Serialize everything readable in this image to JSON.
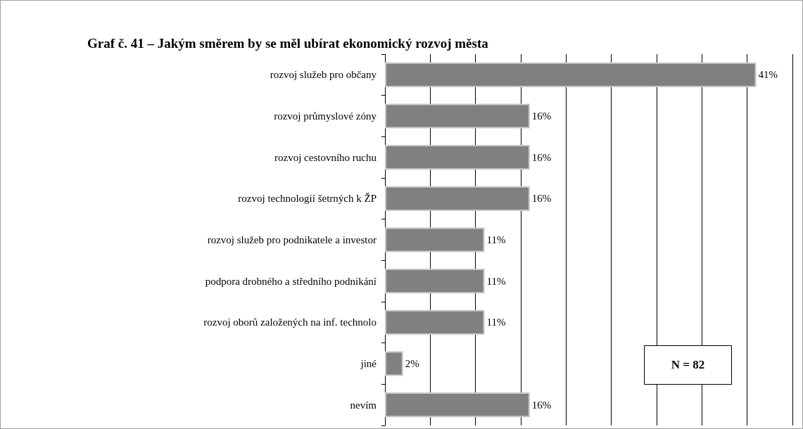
{
  "chart_data": {
    "type": "bar",
    "orientation": "horizontal",
    "title": "Graf č. 41 – Jakým směrem by se měl ubírat ekonomický rozvoj města",
    "categories": [
      "rozvoj služeb pro občany",
      "rozvoj průmyslové zóny",
      "rozvoj cestovního ruchu",
      "rozvoj technologií šetrných k ŽP",
      "rozvoj služeb pro podnikatele a investor",
      "podpora drobného a středního podnikání",
      "rozvoj oborů založených na inf. technolo",
      "jiné",
      "nevím"
    ],
    "values": [
      41,
      16,
      16,
      16,
      11,
      11,
      11,
      2,
      16
    ],
    "value_labels": [
      "41%",
      "16%",
      "16%",
      "16%",
      "11%",
      "11%",
      "11%",
      "2%",
      "16%"
    ],
    "color": "#808080",
    "xlim": [
      0,
      45
    ],
    "xticks": [
      {
        "value": 0,
        "label": null
      },
      {
        "value": 5,
        "label": null
      },
      {
        "value": 10,
        "label": null
      },
      {
        "value": 15,
        "label": null
      },
      {
        "value": 20,
        "label": null
      },
      {
        "value": 25,
        "label": null
      },
      {
        "value": 30,
        "label": null
      },
      {
        "value": 35,
        "label": null
      },
      {
        "value": 40,
        "label": null
      },
      {
        "value": 45,
        "label": null
      }
    ],
    "grid": "x",
    "tick_labels": "y",
    "annotations": [
      "N = 82"
    ]
  }
}
